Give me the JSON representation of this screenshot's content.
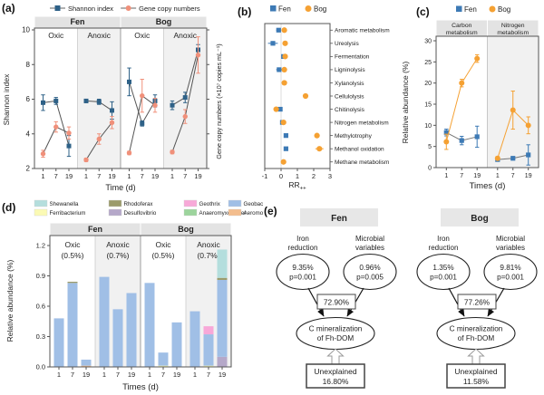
{
  "panels": {
    "a": "(a)",
    "b": "(b)",
    "c": "(c)",
    "d": "(d)",
    "e": "(e)"
  },
  "chart_data": [
    {
      "panel": "a",
      "type": "line",
      "legend": [
        {
          "label": "Shannon index",
          "marker": "square",
          "color": "#2e6187"
        },
        {
          "label": "Gene copy numbers",
          "marker": "circle",
          "color": "#f0907a"
        }
      ],
      "group_headers": [
        "Fen",
        "Bog"
      ],
      "x_ticks": [
        "1",
        "7",
        "19"
      ],
      "xlabel": "Time (d)",
      "ylabel_left": "Shannon index",
      "ylabel_right": "Gene copy numbers (×10⁷ copies mL⁻¹)",
      "ylim": [
        2,
        10
      ],
      "yticks": [
        2,
        4,
        6,
        8,
        10
      ],
      "subpanels": [
        {
          "condition": "Oxic",
          "shaded": false,
          "series": {
            "shannon": {
              "y": [
                5.8,
                5.9,
                3.3
              ],
              "err": [
                0.45,
                0.2,
                0.6
              ]
            },
            "gene": {
              "y": [
                2.85,
                4.4,
                4.05
              ],
              "err": [
                0.2,
                0.3,
                0.35
              ]
            }
          }
        },
        {
          "condition": "Anoxic",
          "shaded": true,
          "series": {
            "shannon": {
              "y": [
                5.9,
                5.85,
                5.35
              ],
              "err": [
                0.1,
                0.15,
                0.5
              ]
            },
            "gene": {
              "y": [
                2.5,
                3.7,
                4.65
              ],
              "err": [
                0.1,
                0.3,
                0.35
              ]
            }
          }
        },
        {
          "condition": "Oxic",
          "shaded": false,
          "series": {
            "shannon": {
              "y": [
                7.0,
                4.6,
                5.9
              ],
              "err": [
                0.8,
                0.15,
                0.35
              ]
            },
            "gene": {
              "y": [
                2.9,
                6.2,
                5.65
              ],
              "err": [
                0.1,
                0.95,
                0.4
              ]
            }
          }
        },
        {
          "condition": "Anoxic",
          "shaded": true,
          "series": {
            "shannon": {
              "y": [
                5.65,
                6.1,
                8.85
              ],
              "err": [
                0.25,
                0.3,
                0.3
              ]
            },
            "gene": {
              "y": [
                2.95,
                5.0,
                8.55
              ],
              "err": [
                0.1,
                0.4,
                1.05
              ]
            }
          }
        }
      ]
    },
    {
      "panel": "b",
      "type": "scatter",
      "legend": [
        {
          "label": "Fen",
          "marker": "square",
          "color": "#3d7ab5"
        },
        {
          "label": "Bog",
          "marker": "circle",
          "color": "#f5a133"
        }
      ],
      "xlabel_base": "RR",
      "xlabel_sub": "++",
      "xlim": [
        -1,
        3
      ],
      "xticks": [
        -1,
        0,
        1,
        2,
        3
      ],
      "rows": [
        {
          "label": "Aromatic metabolism",
          "fen": -0.15,
          "fen_err": 0.15,
          "bog": 0.2
        },
        {
          "label": "Ureolysis",
          "fen": -0.5,
          "fen_err": 0.3,
          "bog": 0.25
        },
        {
          "label": "Fermentation",
          "fen": 0.15,
          "bog": 0.25
        },
        {
          "label": "Ligninolysis",
          "fen": -0.12,
          "fen_err": 0.18,
          "bog": 0.2
        },
        {
          "label": "Xylanolysis",
          "bog": 0.2
        },
        {
          "label": "Cellulolysis",
          "bog": 1.5
        },
        {
          "label": "Chitinolysis",
          "fen": -0.05,
          "bog": -0.3
        },
        {
          "label": "Nitrogen metabolism",
          "fen": 0.08,
          "bog": 0.15
        },
        {
          "label": "Methylotrophy",
          "fen": 0.3,
          "bog": 2.2,
          "bog_err": 0.15
        },
        {
          "label": "Methanol oxidation",
          "fen": 0.3,
          "bog": 2.35,
          "bog_err": 0.25
        },
        {
          "label": "Methane metabolism",
          "bog": 0.15
        }
      ]
    },
    {
      "panel": "c",
      "type": "line",
      "legend": [
        {
          "label": "Fen",
          "marker": "square",
          "color": "#3d7ab5"
        },
        {
          "label": "Bog",
          "marker": "circle",
          "color": "#f5a133"
        }
      ],
      "x_ticks": [
        "1",
        "7",
        "19"
      ],
      "xlabel": "Times (d)",
      "ylabel": "Relative abundance (%)",
      "ylim": [
        0,
        30
      ],
      "yticks": [
        0,
        5,
        10,
        15,
        20,
        25,
        30
      ],
      "subpanels": [
        {
          "header_lines": [
            "Carbon",
            "metabolism"
          ],
          "shaded": false,
          "fen": {
            "y": [
              8.3,
              6.4,
              7.3
            ],
            "err": [
              0.8,
              1.0,
              2.5
            ]
          },
          "bog": {
            "y": [
              6.1,
              20.0,
              25.8
            ],
            "err": [
              1.8,
              0.9,
              0.9
            ]
          }
        },
        {
          "header_lines": [
            "Nitrogen",
            "metabolism"
          ],
          "shaded": true,
          "fen": {
            "y": [
              1.9,
              2.2,
              3.0
            ],
            "err": [
              0.3,
              0.4,
              2.4
            ]
          },
          "bog": {
            "y": [
              2.2,
              13.6,
              10.0
            ],
            "err": [
              0.4,
              4.5,
              2.0
            ]
          }
        }
      ]
    },
    {
      "panel": "d",
      "type": "bar",
      "taxa": [
        {
          "name": "Shewanella",
          "color": "#b4dedd"
        },
        {
          "name": "Ferribacterium",
          "color": "#fbfab4"
        },
        {
          "name": "Rhodoferax",
          "color": "#9b9b6b"
        },
        {
          "name": "Desulfovibrio",
          "color": "#b5a8c9"
        },
        {
          "name": "Geothrix",
          "color": "#f8a8d8"
        },
        {
          "name": "Anaeromyxobacter",
          "color": "#9cd49c"
        },
        {
          "name": "Geobacter",
          "color": "#a0bfe6"
        },
        {
          "name": "Aeromonas",
          "color": "#f3bd8d"
        }
      ],
      "group_headers": [
        "Fen",
        "Bog"
      ],
      "x_ticks": [
        "1",
        "7",
        "19"
      ],
      "xlabel": "Times (d)",
      "ylabel": "Relative abundance (%)",
      "ylim": [
        0,
        1.2
      ],
      "yticks": [
        0,
        0.3,
        0.6,
        0.9,
        1.2
      ],
      "subpanels": [
        {
          "condition_lines": [
            "Oxic",
            "(0.5%)"
          ],
          "shaded": false,
          "bars": [
            [
              {
                "t": "Geobacter",
                "v": 0.48
              }
            ],
            [
              {
                "t": "Geobacter",
                "v": 0.83
              },
              {
                "t": "Rhodoferax",
                "v": 0.012
              }
            ],
            [
              {
                "t": "Aeromonas",
                "v": 0.012
              },
              {
                "t": "Geobacter",
                "v": 0.06
              }
            ]
          ]
        },
        {
          "condition_lines": [
            "Anoxic",
            "(0.7%)"
          ],
          "shaded": true,
          "bars": [
            [
              {
                "t": "Geobacter",
                "v": 0.89
              }
            ],
            [
              {
                "t": "Geobacter",
                "v": 0.57
              }
            ],
            [
              {
                "t": "Geobacter",
                "v": 0.73
              }
            ]
          ]
        },
        {
          "condition_lines": [
            "Oxic",
            "(0.5%)"
          ],
          "shaded": false,
          "bars": [
            [
              {
                "t": "Geobacter",
                "v": 0.83
              }
            ],
            [
              {
                "t": "Ferribacterium",
                "v": 0.012
              },
              {
                "t": "Geobacter",
                "v": 0.13
              }
            ],
            [
              {
                "t": "Geobacter",
                "v": 0.44
              }
            ]
          ]
        },
        {
          "condition_lines": [
            "Anoxic",
            "(0.7%)"
          ],
          "shaded": true,
          "bars": [
            [
              {
                "t": "Geobacter",
                "v": 0.55
              }
            ],
            [
              {
                "t": "Ferribacterium",
                "v": 0.012
              },
              {
                "t": "Geobacter",
                "v": 0.31
              },
              {
                "t": "Geothrix",
                "v": 0.08
              }
            ],
            [
              {
                "t": "Desulfovibrio",
                "v": 0.1
              },
              {
                "t": "Geobacter",
                "v": 0.76
              },
              {
                "t": "Rhodoferax",
                "v": 0.02
              },
              {
                "t": "Shewanella",
                "v": 0.28
              }
            ]
          ]
        }
      ]
    }
  ],
  "diagram": {
    "models": [
      {
        "title": "Fen",
        "predictors": [
          {
            "label_lines": [
              "Iron",
              "reduction"
            ],
            "value": "9.35%",
            "p": "p=0.001"
          },
          {
            "label_lines": [
              "Microbial",
              "variables"
            ],
            "value": "0.96%",
            "p": "p=0.005"
          }
        ],
        "r2": "72.90%",
        "outcome_lines": [
          "C mineralization",
          "of Fh-DOM"
        ],
        "unexplained_lines": [
          "Unexplained",
          "16.80%"
        ]
      },
      {
        "title": "Bog",
        "predictors": [
          {
            "label_lines": [
              "Iron",
              "reduction"
            ],
            "value": "1.35%",
            "p": "p=0.001"
          },
          {
            "label_lines": [
              "Microbial",
              "variables"
            ],
            "value": "9.81%",
            "p": "p=0.001"
          }
        ],
        "r2": "77.26%",
        "outcome_lines": [
          "C mineralization",
          "of Fh-DOM"
        ],
        "unexplained_lines": [
          "Unexplained",
          "11.58%"
        ]
      }
    ]
  },
  "style_colors": {
    "header_strip": "#e3e3e3",
    "anoxic_shade": "#f1f1f1",
    "axis": "#555555"
  }
}
